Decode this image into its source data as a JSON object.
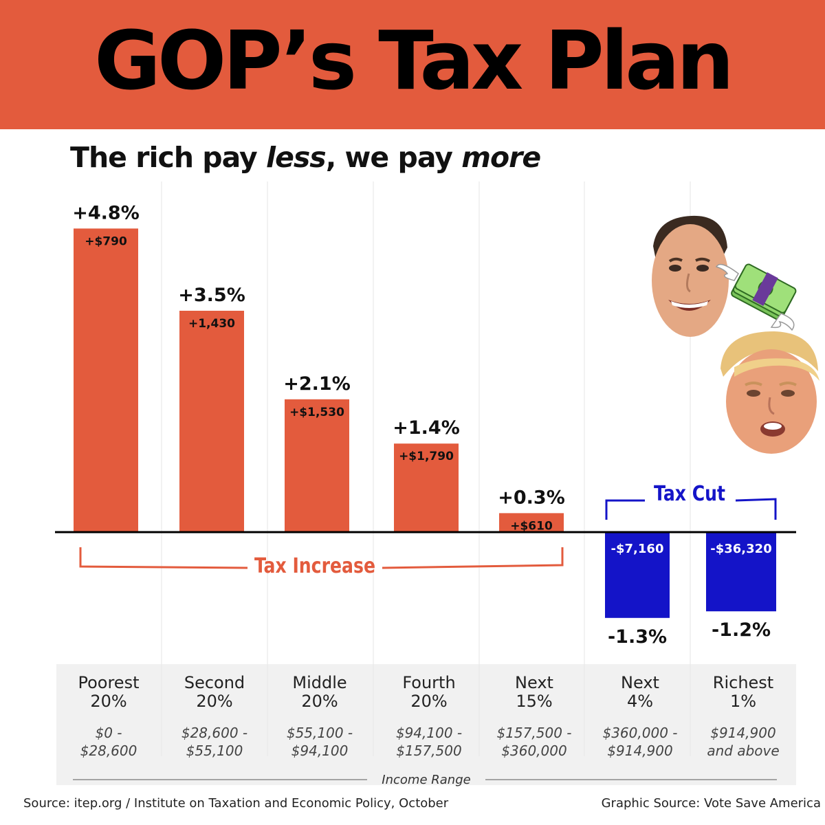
{
  "title": "GOP’s Tax Plan",
  "subtitle": {
    "part1": "The rich pay ",
    "em1": "less",
    "part2": ", we pay ",
    "em2": "more"
  },
  "colors": {
    "banner": "#e35b3d",
    "increase": "#e35b3d",
    "cut": "#1414c8"
  },
  "chart_data": {
    "type": "bar",
    "categories": [
      "Poorest 20%",
      "Second 20%",
      "Middle 20%",
      "Fourth 20%",
      "Next 15%",
      "Next 4%",
      "Richest 1%"
    ],
    "category_lines": [
      [
        "Poorest",
        "20%"
      ],
      [
        "Second",
        "20%"
      ],
      [
        "Middle",
        "20%"
      ],
      [
        "Fourth",
        "20%"
      ],
      [
        "Next",
        "15%"
      ],
      [
        "Next",
        "4%"
      ],
      [
        "Richest",
        "1%"
      ]
    ],
    "ranges": [
      [
        "$0 -",
        "$28,600"
      ],
      [
        "$28,600 -",
        "$55,100"
      ],
      [
        "$55,100 -",
        "$94,100"
      ],
      [
        "$94,100 -",
        "$157,500"
      ],
      [
        "$157,500 -",
        "$360,000"
      ],
      [
        "$360,000 -",
        "$914,900"
      ],
      [
        "$914,900",
        "and above"
      ]
    ],
    "values": [
      4.8,
      3.5,
      2.1,
      1.4,
      0.3,
      -1.3,
      -1.2
    ],
    "percent_labels": [
      "+4.8%",
      "+3.5%",
      "+2.1%",
      "+1.4%",
      "+0.3%",
      "-1.3%",
      "-1.2%"
    ],
    "dollar_labels": [
      "+$790",
      "+1,430",
      "+$1,530",
      "+$1,790",
      "+$610",
      "-$7,160",
      "-$36,320"
    ],
    "xlabel": "Income Range",
    "ylabel": "",
    "grid": "vertical separators",
    "brackets": {
      "increase": "Tax Increase",
      "cut": "Tax Cut"
    }
  },
  "footer": {
    "source": "Source: itep.org / Institute on Taxation and Economic Policy, October",
    "graphic_source": "Graphic Source: Vote Save America"
  }
}
